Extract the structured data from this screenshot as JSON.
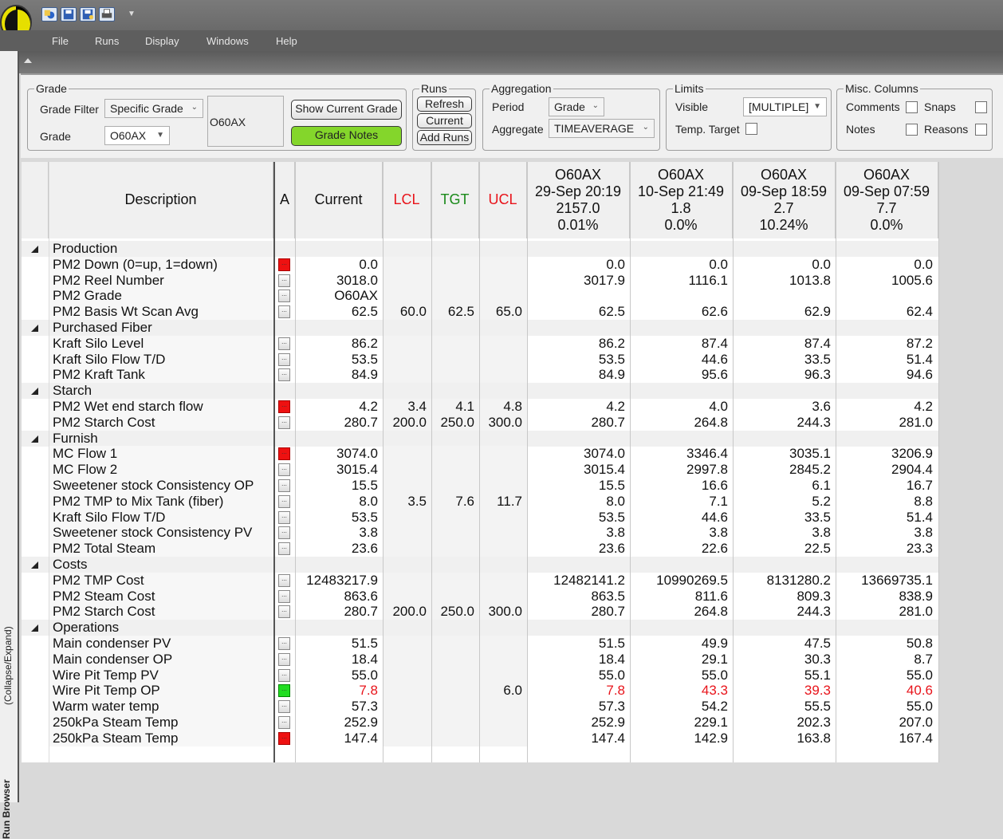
{
  "menu": [
    "File",
    "Runs",
    "Display",
    "Windows",
    "Help"
  ],
  "left_strip": {
    "collapse_label": "(Collapse/Expand)",
    "browser_label": "Run Browser"
  },
  "grade_group": {
    "title": "Grade",
    "filter_label": "Grade Filter",
    "filter_value": "Specific Grade",
    "grade_label": "Grade",
    "grade_value": "O60AX",
    "grade_text": "O60AX",
    "show_current_grade": "Show Current Grade",
    "grade_notes": "Grade Notes"
  },
  "runs_group": {
    "title": "Runs",
    "refresh": "Refresh",
    "current": "Current",
    "add_runs": "Add Runs"
  },
  "aggregation_group": {
    "title": "Aggregation",
    "period_label": "Period",
    "period_value": "Grade",
    "aggregate_label": "Aggregate",
    "aggregate_value": "TIMEAVERAGE"
  },
  "limits_group": {
    "title": "Limits",
    "visible_label": "Visible",
    "visible_value": "[MULTIPLE]",
    "temp_target_label": "Temp. Target"
  },
  "misc_group": {
    "title": "Misc. Columns",
    "comments": "Comments",
    "snaps": "Snaps",
    "notes": "Notes",
    "reasons": "Reasons"
  },
  "columns": {
    "description": "Description",
    "a": "A",
    "current": "Current",
    "lcl": "LCL",
    "tgt": "TGT",
    "ucl": "UCL",
    "runs": [
      {
        "grade": "O60AX",
        "time": "29-Sep 20:19",
        "value": "2157.0",
        "pct": "0.01%"
      },
      {
        "grade": "O60AX",
        "time": "10-Sep 21:49",
        "value": "1.8",
        "pct": "0.0%"
      },
      {
        "grade": "O60AX",
        "time": "09-Sep 18:59",
        "value": "2.7",
        "pct": "10.24%"
      },
      {
        "grade": "O60AX",
        "time": "09-Sep 07:59",
        "value": "7.7",
        "pct": "0.0%"
      }
    ]
  },
  "colors": {
    "lcl": "#e8141b",
    "tgt": "#1a8a1a",
    "ucl": "#e8141b",
    "alarm_text": "#e8141b",
    "status_red": "#ee1111",
    "status_green": "#22dd22"
  },
  "rows": [
    {
      "type": "cat",
      "desc": "Production"
    },
    {
      "type": "item",
      "desc": "PM2 Down (0=up, 1=down)",
      "status": "red",
      "current": "0.0",
      "lcl": "",
      "tgt": "",
      "ucl": "",
      "runs": [
        "0.0",
        "0.0",
        "0.0",
        "0.0"
      ]
    },
    {
      "type": "item",
      "desc": "PM2 Reel Number",
      "status": "none",
      "current": "3018.0",
      "lcl": "",
      "tgt": "",
      "ucl": "",
      "runs": [
        "3017.9",
        "1116.1",
        "1013.8",
        "1005.6"
      ]
    },
    {
      "type": "item",
      "desc": "PM2 Grade",
      "status": "none",
      "current": "O60AX",
      "lcl": "",
      "tgt": "",
      "ucl": "",
      "runs": [
        "",
        "",
        "",
        ""
      ]
    },
    {
      "type": "item",
      "desc": "PM2 Basis Wt Scan Avg",
      "status": "none",
      "current": "62.5",
      "lcl": "60.0",
      "tgt": "62.5",
      "ucl": "65.0",
      "runs": [
        "62.5",
        "62.6",
        "62.9",
        "62.4"
      ]
    },
    {
      "type": "cat",
      "desc": "Purchased Fiber"
    },
    {
      "type": "item",
      "desc": "Kraft Silo Level",
      "status": "none",
      "current": "86.2",
      "lcl": "",
      "tgt": "",
      "ucl": "",
      "runs": [
        "86.2",
        "87.4",
        "87.4",
        "87.2"
      ]
    },
    {
      "type": "item",
      "desc": "Kraft Silo Flow T/D",
      "status": "none",
      "current": "53.5",
      "lcl": "",
      "tgt": "",
      "ucl": "",
      "runs": [
        "53.5",
        "44.6",
        "33.5",
        "51.4"
      ]
    },
    {
      "type": "item",
      "desc": "PM2 Kraft Tank",
      "status": "none",
      "current": "84.9",
      "lcl": "",
      "tgt": "",
      "ucl": "",
      "runs": [
        "84.9",
        "95.6",
        "96.3",
        "94.6"
      ]
    },
    {
      "type": "cat",
      "desc": "Starch"
    },
    {
      "type": "item",
      "desc": "PM2 Wet end starch flow",
      "status": "red",
      "current": "4.2",
      "lcl": "3.4",
      "tgt": "4.1",
      "ucl": "4.8",
      "runs": [
        "4.2",
        "4.0",
        "3.6",
        "4.2"
      ]
    },
    {
      "type": "item",
      "desc": "PM2 Starch Cost",
      "status": "none",
      "current": "280.7",
      "lcl": "200.0",
      "tgt": "250.0",
      "ucl": "300.0",
      "runs": [
        "280.7",
        "264.8",
        "244.3",
        "281.0"
      ]
    },
    {
      "type": "cat",
      "desc": "Furnish"
    },
    {
      "type": "item",
      "desc": "MC Flow 1",
      "status": "red",
      "current": "3074.0",
      "lcl": "",
      "tgt": "",
      "ucl": "",
      "runs": [
        "3074.0",
        "3346.4",
        "3035.1",
        "3206.9"
      ]
    },
    {
      "type": "item",
      "desc": "MC Flow 2",
      "status": "none",
      "current": "3015.4",
      "lcl": "",
      "tgt": "",
      "ucl": "",
      "runs": [
        "3015.4",
        "2997.8",
        "2845.2",
        "2904.4"
      ]
    },
    {
      "type": "item",
      "desc": "Sweetener stock Consistency OP",
      "status": "none",
      "current": "15.5",
      "lcl": "",
      "tgt": "",
      "ucl": "",
      "runs": [
        "15.5",
        "16.6",
        "6.1",
        "16.7"
      ]
    },
    {
      "type": "item",
      "desc": "PM2 TMP to Mix Tank (fiber)",
      "status": "none",
      "current": "8.0",
      "lcl": "3.5",
      "tgt": "7.6",
      "ucl": "11.7",
      "runs": [
        "8.0",
        "7.1",
        "5.2",
        "8.8"
      ]
    },
    {
      "type": "item",
      "desc": "Kraft Silo Flow T/D",
      "status": "none",
      "current": "53.5",
      "lcl": "",
      "tgt": "",
      "ucl": "",
      "runs": [
        "53.5",
        "44.6",
        "33.5",
        "51.4"
      ]
    },
    {
      "type": "item",
      "desc": "Sweetener stock Consistency PV",
      "status": "none",
      "current": "3.8",
      "lcl": "",
      "tgt": "",
      "ucl": "",
      "runs": [
        "3.8",
        "3.8",
        "3.8",
        "3.8"
      ]
    },
    {
      "type": "item",
      "desc": "PM2 Total Steam",
      "status": "none",
      "current": "23.6",
      "lcl": "",
      "tgt": "",
      "ucl": "",
      "runs": [
        "23.6",
        "22.6",
        "22.5",
        "23.3"
      ]
    },
    {
      "type": "cat",
      "desc": "Costs"
    },
    {
      "type": "item",
      "desc": "PM2 TMP Cost",
      "status": "none",
      "current": "12483217.9",
      "lcl": "",
      "tgt": "",
      "ucl": "",
      "runs": [
        "12482141.2",
        "10990269.5",
        "8131280.2",
        "13669735.1"
      ]
    },
    {
      "type": "item",
      "desc": "PM2 Steam Cost",
      "status": "none",
      "current": "863.6",
      "lcl": "",
      "tgt": "",
      "ucl": "",
      "runs": [
        "863.5",
        "811.6",
        "809.3",
        "838.9"
      ]
    },
    {
      "type": "item",
      "desc": "PM2 Starch Cost",
      "status": "none",
      "current": "280.7",
      "lcl": "200.0",
      "tgt": "250.0",
      "ucl": "300.0",
      "runs": [
        "280.7",
        "264.8",
        "244.3",
        "281.0"
      ]
    },
    {
      "type": "cat",
      "desc": "Operations"
    },
    {
      "type": "item",
      "desc": "Main condenser PV",
      "status": "none",
      "current": "51.5",
      "lcl": "",
      "tgt": "",
      "ucl": "",
      "runs": [
        "51.5",
        "49.9",
        "47.5",
        "50.8"
      ]
    },
    {
      "type": "item",
      "desc": "Main condenser OP",
      "status": "none",
      "current": "18.4",
      "lcl": "",
      "tgt": "",
      "ucl": "",
      "runs": [
        "18.4",
        "29.1",
        "30.3",
        "8.7"
      ]
    },
    {
      "type": "item",
      "desc": "Wire Pit Temp PV",
      "status": "none",
      "current": "55.0",
      "lcl": "",
      "tgt": "",
      "ucl": "",
      "runs": [
        "55.0",
        "55.0",
        "55.1",
        "55.0"
      ]
    },
    {
      "type": "item",
      "desc": "Wire Pit Temp OP",
      "status": "green",
      "alarm": true,
      "current": "7.8",
      "lcl": "",
      "tgt": "",
      "ucl": "6.0",
      "runs": [
        "7.8",
        "43.3",
        "39.3",
        "40.6"
      ]
    },
    {
      "type": "item",
      "desc": "Warm water temp",
      "status": "none",
      "current": "57.3",
      "lcl": "",
      "tgt": "",
      "ucl": "",
      "runs": [
        "57.3",
        "54.2",
        "55.5",
        "55.0"
      ]
    },
    {
      "type": "item",
      "desc": "250kPa Steam Temp",
      "status": "none",
      "current": "252.9",
      "lcl": "",
      "tgt": "",
      "ucl": "",
      "runs": [
        "252.9",
        "229.1",
        "202.3",
        "207.0"
      ]
    },
    {
      "type": "item",
      "desc": "250kPa Steam Temp",
      "status": "red",
      "current": "147.4",
      "lcl": "",
      "tgt": "",
      "ucl": "",
      "runs": [
        "147.4",
        "142.9",
        "163.8",
        "167.4"
      ]
    }
  ]
}
